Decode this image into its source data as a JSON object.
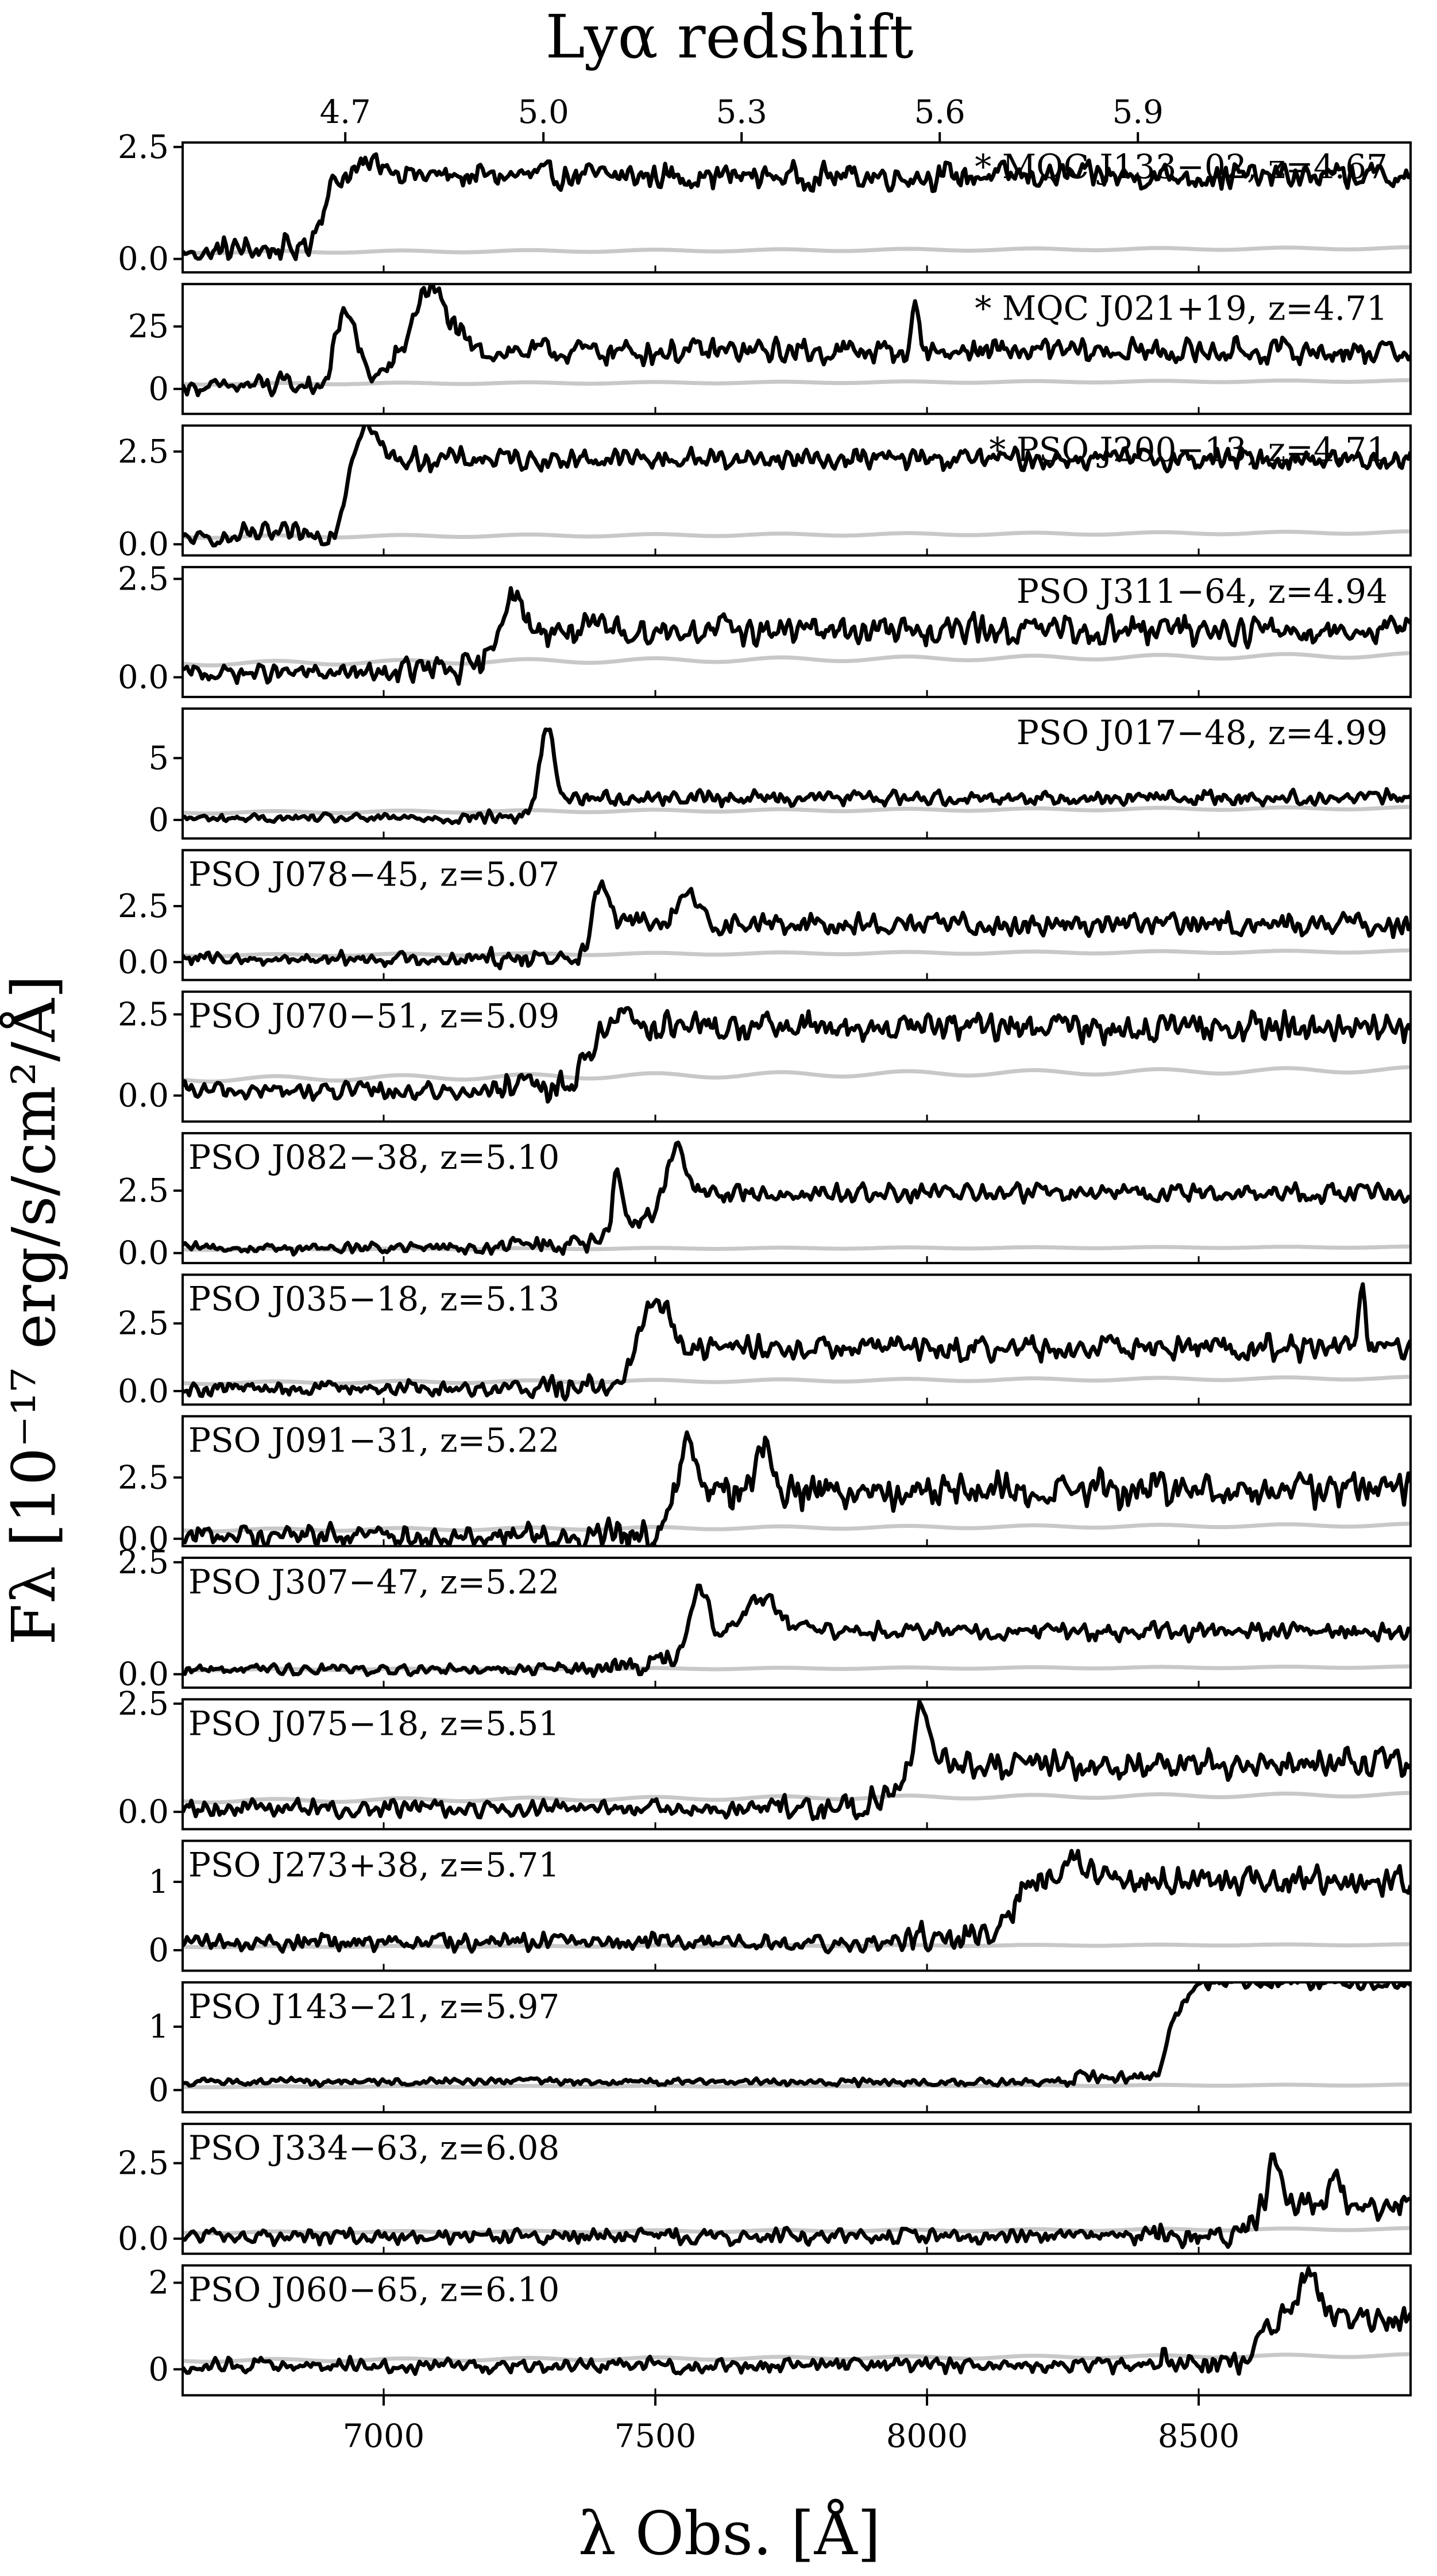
{
  "figure": {
    "top_axis_title": "Lyα redshift",
    "top_ticks": [
      "4.7",
      "5.0",
      "5.3",
      "5.6",
      "5.9"
    ],
    "x_axis_title": "λ Obs. [Å]",
    "y_axis_title": "Fλ [10⁻¹⁷ erg/s/cm²/Å]",
    "x_ticks": [
      "7000",
      "7500",
      "8000",
      "8500"
    ]
  },
  "chart_data": {
    "type": "line",
    "x_range": [
      6630,
      8890
    ],
    "x_unit": "Å",
    "x_ticks": [
      7000,
      7500,
      8000,
      8500
    ],
    "top_axis": {
      "label": "Lyα redshift",
      "ticks": [
        4.7,
        5.0,
        5.3,
        5.6,
        5.9
      ]
    },
    "colors": {
      "spectrum": "#000000",
      "error": "#c8c8c8"
    },
    "panels": [
      {
        "label": "* MQC J133−02, z=4.67",
        "label_pos": "right",
        "z": 4.67,
        "ylim": [
          -0.3,
          2.6
        ],
        "yticks": [
          0.0,
          2.5
        ],
        "yticklabels": [
          "0.0",
          "2.5"
        ],
        "err": 0.15,
        "scale": 0.85,
        "noise": 0.35,
        "features": [
          {
            "type": "break",
            "at": 6880,
            "width": 40,
            "height": 1.0
          },
          {
            "type": "line",
            "at": 6990,
            "width": 60,
            "height": 0.3
          }
        ]
      },
      {
        "label": "* MQC J021+19, z=4.71",
        "label_pos": "right",
        "z": 4.71,
        "ylim": [
          -10,
          42
        ],
        "yticks": [
          0,
          25
        ],
        "yticklabels": [
          "0",
          "25"
        ],
        "err": 2,
        "scale": 5,
        "noise": 6,
        "features": [
          {
            "type": "line",
            "at": 6930,
            "width": 35,
            "height": 30
          },
          {
            "type": "line",
            "at": 7080,
            "width": 70,
            "height": 26
          },
          {
            "type": "break",
            "at": 7060,
            "width": 30,
            "height": 10
          },
          {
            "type": "line",
            "at": 7980,
            "width": 12,
            "height": 20
          }
        ]
      },
      {
        "label": "* PSO J200−13, z=4.71",
        "label_pos": "right",
        "z": 4.71,
        "ylim": [
          -0.3,
          3.2
        ],
        "yticks": [
          0.0,
          2.5
        ],
        "yticklabels": [
          "0.0",
          "2.5"
        ],
        "err": 0.2,
        "scale": 1.0,
        "noise": 0.35,
        "features": [
          {
            "type": "break",
            "at": 6925,
            "width": 25,
            "height": 1.3
          },
          {
            "type": "line",
            "at": 6965,
            "width": 40,
            "height": 1.0
          }
        ]
      },
      {
        "label": "PSO J311−64, z=4.94",
        "label_pos": "right",
        "z": 4.94,
        "ylim": [
          -0.5,
          2.8
        ],
        "yticks": [
          0.0,
          2.5
        ],
        "yticklabels": [
          "0.0",
          "2.5"
        ],
        "err": 0.35,
        "scale": 0.7,
        "noise": 0.45,
        "features": [
          {
            "type": "line",
            "at": 7230,
            "width": 40,
            "height": 1.0
          },
          {
            "type": "break",
            "at": 7200,
            "width": 30,
            "height": 0.5
          }
        ]
      },
      {
        "label": "PSO J017−48, z=4.99",
        "label_pos": "right",
        "z": 4.99,
        "ylim": [
          -1.5,
          9
        ],
        "yticks": [
          0,
          5
        ],
        "yticklabels": [
          "0",
          "5"
        ],
        "err": 0.6,
        "scale": 0.9,
        "noise": 0.7,
        "features": [
          {
            "type": "line",
            "at": 7300,
            "width": 25,
            "height": 5.8
          },
          {
            "type": "break",
            "at": 7280,
            "width": 30,
            "height": 0.9
          }
        ]
      },
      {
        "label": "PSO J078−45, z=5.07",
        "label_pos": "left",
        "z": 5.07,
        "ylim": [
          -0.8,
          5
        ],
        "yticks": [
          0.0,
          2.5
        ],
        "yticklabels": [
          "0.0",
          "2.5"
        ],
        "err": 0.3,
        "scale": 1.0,
        "noise": 0.6,
        "features": [
          {
            "type": "line",
            "at": 7400,
            "width": 30,
            "height": 2.0
          },
          {
            "type": "line",
            "at": 7560,
            "width": 40,
            "height": 1.2
          },
          {
            "type": "break",
            "at": 7380,
            "width": 30,
            "height": 0.7
          }
        ]
      },
      {
        "label": "PSO J070−51, z=5.09",
        "label_pos": "left",
        "z": 5.09,
        "ylim": [
          -0.8,
          3.2
        ],
        "yticks": [
          0.0,
          2.5
        ],
        "yticklabels": [
          "0.0",
          "2.5"
        ],
        "err": 0.5,
        "scale": 0.9,
        "noise": 0.55,
        "features": [
          {
            "type": "break",
            "at": 7360,
            "width": 20,
            "height": 1.2
          },
          {
            "type": "line",
            "at": 7440,
            "width": 50,
            "height": 0.5
          }
        ]
      },
      {
        "label": "PSO J082−38, z=5.10",
        "label_pos": "left",
        "z": 5.1,
        "ylim": [
          -0.4,
          4.8
        ],
        "yticks": [
          0.0,
          2.5
        ],
        "yticklabels": [
          "0.0",
          "2.5"
        ],
        "err": 0.15,
        "scale": 1.3,
        "noise": 0.45,
        "features": [
          {
            "type": "line",
            "at": 7430,
            "width": 15,
            "height": 2.3
          },
          {
            "type": "line",
            "at": 7540,
            "width": 30,
            "height": 1.8
          },
          {
            "type": "break",
            "at": 7500,
            "width": 30,
            "height": 1.1
          }
        ]
      },
      {
        "label": "PSO J035−18, z=5.13",
        "label_pos": "left",
        "z": 5.13,
        "ylim": [
          -0.5,
          4.3
        ],
        "yticks": [
          0.0,
          2.5
        ],
        "yticklabels": [
          "0.0",
          "2.5"
        ],
        "err": 0.3,
        "scale": 0.8,
        "noise": 0.55,
        "features": [
          {
            "type": "line",
            "at": 7500,
            "width": 45,
            "height": 2.0
          },
          {
            "type": "break",
            "at": 7450,
            "width": 20,
            "height": 0.8
          },
          {
            "type": "line",
            "at": 8800,
            "width": 10,
            "height": 2.5
          }
        ]
      },
      {
        "label": "PSO J091−31, z=5.22",
        "label_pos": "left",
        "z": 5.22,
        "ylim": [
          -0.3,
          5.0
        ],
        "yticks": [
          0.0,
          2.5
        ],
        "yticklabels": [
          "0.0",
          "2.5"
        ],
        "err": 0.35,
        "scale": 1.0,
        "noise": 0.9,
        "features": [
          {
            "type": "line",
            "at": 7560,
            "width": 25,
            "height": 2.6
          },
          {
            "type": "line",
            "at": 7700,
            "width": 25,
            "height": 2.0
          },
          {
            "type": "break",
            "at": 7520,
            "width": 20,
            "height": 1.0
          }
        ]
      },
      {
        "label": "PSO J307−47, z=5.22",
        "label_pos": "left",
        "z": 5.22,
        "ylim": [
          -0.3,
          2.6
        ],
        "yticks": [
          0.0,
          2.5
        ],
        "yticklabels": [
          "0.0",
          "2.5"
        ],
        "err": 0.1,
        "scale": 0.75,
        "noise": 0.25,
        "features": [
          {
            "type": "line",
            "at": 7580,
            "width": 30,
            "height": 1.0
          },
          {
            "type": "line",
            "at": 7700,
            "width": 60,
            "height": 0.8
          },
          {
            "type": "break",
            "at": 7520,
            "width": 30,
            "height": 0.2
          }
        ]
      },
      {
        "label": "PSO J075−18, z=5.51",
        "label_pos": "left",
        "z": 5.51,
        "ylim": [
          -0.4,
          2.6
        ],
        "yticks": [
          0.0,
          2.5
        ],
        "yticklabels": [
          "0.0",
          "2.5"
        ],
        "err": 0.25,
        "scale": 0.5,
        "noise": 0.4,
        "features": [
          {
            "type": "line",
            "at": 7990,
            "width": 25,
            "height": 1.4
          },
          {
            "type": "break",
            "at": 7960,
            "width": 25,
            "height": 0.6
          }
        ]
      },
      {
        "label": "PSO J273+38, z=5.71",
        "label_pos": "left",
        "z": 5.71,
        "ylim": [
          -0.3,
          1.6
        ],
        "yticks": [
          0,
          1
        ],
        "yticklabels": [
          "0",
          "1"
        ],
        "err": 0.05,
        "scale": 0.75,
        "noise": 0.25,
        "features": [
          {
            "type": "line",
            "at": 8270,
            "width": 60,
            "height": 0.3
          },
          {
            "type": "break",
            "at": 8160,
            "width": 30,
            "height": 0.25
          }
        ]
      },
      {
        "label": "PSO J143−21, z=5.97",
        "label_pos": "left",
        "z": 5.97,
        "ylim": [
          -0.35,
          1.7
        ],
        "yticks": [
          0,
          1
        ],
        "yticklabels": [
          "0",
          "1"
        ],
        "err": 0.05,
        "scale": 0.85,
        "noise": 0.12,
        "features": [
          {
            "type": "break",
            "at": 8440,
            "width": 20,
            "height": 0.85
          }
        ]
      },
      {
        "label": "PSO J334−63, z=6.08",
        "label_pos": "left",
        "z": 6.08,
        "ylim": [
          -0.5,
          3.8
        ],
        "yticks": [
          0.0,
          2.5
        ],
        "yticklabels": [
          "0.0",
          "2.5"
        ],
        "err": 0.2,
        "scale": 0.5,
        "noise": 0.5,
        "features": [
          {
            "type": "line",
            "at": 8640,
            "width": 20,
            "height": 1.8
          },
          {
            "type": "line",
            "at": 8750,
            "width": 20,
            "height": 1.2
          },
          {
            "type": "break",
            "at": 8600,
            "width": 20,
            "height": 0.6
          }
        ]
      },
      {
        "label": "PSO J060−65, z=6.10",
        "label_pos": "left",
        "z": 6.1,
        "ylim": [
          -0.6,
          2.4
        ],
        "yticks": [
          0,
          2
        ],
        "yticklabels": [
          "0",
          "2"
        ],
        "err": 0.2,
        "scale": 0.6,
        "noise": 0.35,
        "features": [
          {
            "type": "line",
            "at": 8700,
            "width": 40,
            "height": 0.9
          },
          {
            "type": "break",
            "at": 8600,
            "width": 25,
            "height": 0.6
          }
        ]
      }
    ]
  }
}
